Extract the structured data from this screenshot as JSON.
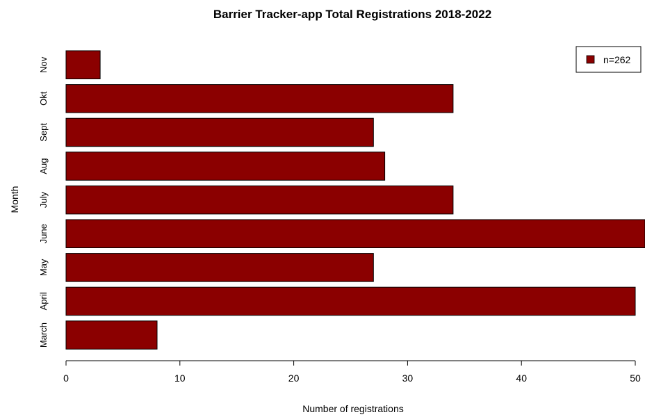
{
  "chart_data": {
    "type": "bar",
    "orientation": "horizontal",
    "title": "Barrier Tracker-app Total Registrations 2018-2022",
    "xlabel": "Number of registrations",
    "ylabel": "Month",
    "categories": [
      "March",
      "April",
      "May",
      "June",
      "July",
      "Aug",
      "Sept",
      "Okt",
      "Nov"
    ],
    "values": [
      8,
      50,
      27,
      51,
      34,
      28,
      27,
      34,
      3
    ],
    "xlim": [
      0,
      50
    ],
    "xticks": [
      "0",
      "10",
      "20",
      "30",
      "40",
      "50"
    ],
    "grid": false,
    "bar_color": "#8B0000",
    "legend": {
      "position": "top-right",
      "label": "n=262",
      "color": "#8B0000"
    }
  }
}
